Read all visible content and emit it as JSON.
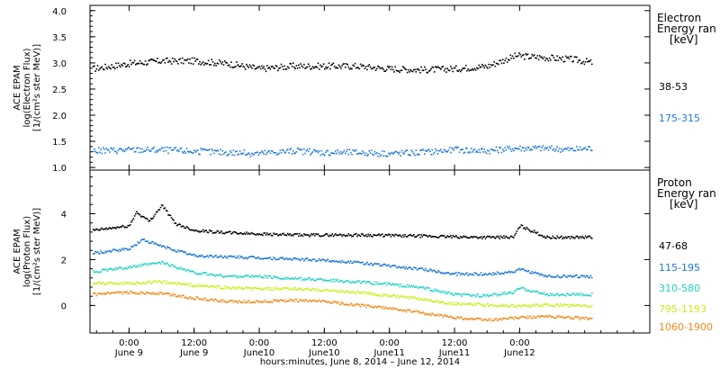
{
  "chart_data": [
    {
      "type": "scatter",
      "panel": "electron",
      "ylabel_lines": [
        "ACE EPAM",
        "log(Electron Flux)",
        "[1/(cm²s ster MeV)]"
      ],
      "ylim": [
        0.95,
        4.1
      ],
      "yticks": [
        "1.0",
        "1.5",
        "2.0",
        "2.5",
        "3.0",
        "3.5",
        "4.0"
      ],
      "ytick_values": [
        1.0,
        1.5,
        2.0,
        2.5,
        3.0,
        3.5,
        4.0
      ],
      "legend_title": [
        "Electron",
        "Energy ran",
        "[keV]"
      ],
      "series": [
        {
          "name": "38-53",
          "color": "#000000",
          "x": [
            -0.28,
            0.0,
            0.25,
            0.5,
            0.75,
            1.0,
            1.25,
            1.5,
            1.75,
            2.0,
            2.25,
            2.5,
            2.75,
            2.97,
            3.15,
            3.4,
            3.55
          ],
          "values": [
            2.9,
            3.0,
            3.05,
            3.05,
            3.0,
            2.9,
            2.95,
            2.95,
            2.95,
            2.9,
            2.88,
            2.9,
            2.95,
            3.15,
            3.12,
            3.08,
            3.02
          ]
        },
        {
          "name": "175-315",
          "color": "#1f78d8",
          "x": [
            -0.28,
            0.0,
            0.25,
            0.5,
            0.75,
            1.0,
            1.25,
            1.5,
            1.75,
            2.0,
            2.25,
            2.5,
            2.75,
            2.97,
            3.15,
            3.4,
            3.55
          ],
          "values": [
            1.33,
            1.35,
            1.35,
            1.32,
            1.3,
            1.28,
            1.33,
            1.3,
            1.3,
            1.28,
            1.3,
            1.35,
            1.33,
            1.38,
            1.38,
            1.35,
            1.38
          ]
        }
      ]
    },
    {
      "type": "scatter",
      "panel": "proton",
      "ylabel_lines": [
        "ACE EPAM",
        "log(Proton Flux)",
        "[1/(cm²s ster MeV)]"
      ],
      "ylim": [
        -1.2,
        5.9
      ],
      "yticks": [
        "0",
        "2",
        "4"
      ],
      "ytick_values": [
        0,
        2,
        4
      ],
      "legend_title": [
        "Proton",
        "Energy ran",
        "[keV]"
      ],
      "series": [
        {
          "name": "47-68",
          "color": "#000000",
          "x": [
            -0.28,
            0.0,
            0.05,
            0.15,
            0.25,
            0.35,
            0.5,
            0.75,
            1.0,
            1.25,
            1.5,
            1.75,
            2.0,
            2.25,
            2.5,
            2.75,
            2.95,
            3.0,
            3.2,
            3.55
          ],
          "values": [
            3.3,
            3.5,
            4.1,
            3.7,
            4.4,
            3.6,
            3.3,
            3.2,
            3.15,
            3.1,
            3.1,
            3.1,
            3.08,
            3.05,
            3.02,
            3.0,
            3.0,
            3.5,
            3.0,
            3.0
          ]
        },
        {
          "name": "115-195",
          "color": "#1f78d8",
          "x": [
            -0.28,
            0.0,
            0.1,
            0.25,
            0.5,
            0.75,
            1.0,
            1.25,
            1.5,
            1.75,
            2.0,
            2.25,
            2.5,
            2.75,
            2.95,
            3.0,
            3.2,
            3.55
          ],
          "values": [
            2.3,
            2.5,
            2.9,
            2.6,
            2.2,
            2.15,
            2.1,
            2.05,
            2.0,
            1.9,
            1.75,
            1.6,
            1.4,
            1.4,
            1.5,
            1.6,
            1.3,
            1.3
          ]
        },
        {
          "name": "310-580",
          "color": "#22d3c5",
          "x": [
            -0.28,
            0.0,
            0.25,
            0.5,
            0.75,
            1.0,
            1.25,
            1.5,
            1.75,
            2.0,
            2.25,
            2.5,
            2.75,
            2.95,
            3.0,
            3.2,
            3.55
          ],
          "values": [
            1.5,
            1.7,
            1.9,
            1.45,
            1.3,
            1.3,
            1.2,
            1.15,
            1.05,
            0.95,
            0.8,
            0.5,
            0.45,
            0.6,
            0.8,
            0.5,
            0.5
          ]
        },
        {
          "name": "795-1193",
          "color": "#c9ef1a",
          "x": [
            -0.28,
            0.0,
            0.25,
            0.5,
            0.75,
            1.0,
            1.25,
            1.5,
            1.75,
            2.0,
            2.25,
            2.5,
            2.75,
            3.0,
            3.2,
            3.55
          ],
          "values": [
            1.0,
            1.0,
            1.05,
            0.9,
            0.8,
            0.75,
            0.75,
            0.7,
            0.6,
            0.45,
            0.3,
            0.1,
            0.05,
            0.0,
            0.05,
            0.0
          ]
        },
        {
          "name": "1060-1900",
          "color": "#f08a1c",
          "x": [
            -0.28,
            0.0,
            0.25,
            0.5,
            0.75,
            1.0,
            1.25,
            1.5,
            1.75,
            2.0,
            2.25,
            2.5,
            2.75,
            3.0,
            3.2,
            3.55
          ],
          "values": [
            0.5,
            0.6,
            0.55,
            0.35,
            0.2,
            0.2,
            0.25,
            0.2,
            0.05,
            -0.1,
            -0.3,
            -0.5,
            -0.6,
            -0.5,
            -0.45,
            -0.55
          ]
        }
      ]
    }
  ],
  "x_axis": {
    "xlim": [
      -0.3,
      4.0
    ],
    "ticks": [
      {
        "x": 0.0,
        "top": "0:00",
        "bottom": "June 9"
      },
      {
        "x": 0.5,
        "top": "12:00",
        "bottom": "June 9"
      },
      {
        "x": 1.0,
        "top": "0:00",
        "bottom": "June10"
      },
      {
        "x": 1.5,
        "top": "12:00",
        "bottom": "June10"
      },
      {
        "x": 2.0,
        "top": "0:00",
        "bottom": "June11"
      },
      {
        "x": 2.5,
        "top": "12:00",
        "bottom": "June11"
      },
      {
        "x": 3.0,
        "top": "0:00",
        "bottom": "June12"
      }
    ],
    "label": "hours:minutes,  June  8, 2014 – June 12, 2014"
  }
}
